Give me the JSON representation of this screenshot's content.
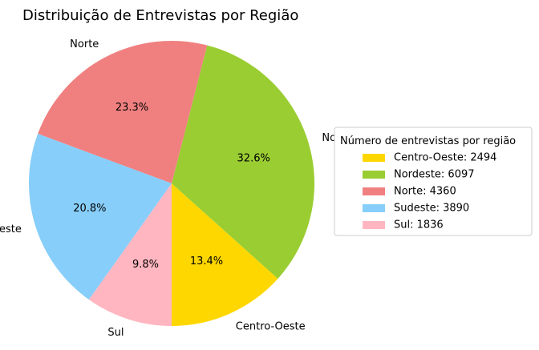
{
  "chart_data": {
    "type": "pie",
    "title": "Distribuição de Entrevistas por Região",
    "categories": [
      "Centro-Oeste",
      "Nordeste",
      "Norte",
      "Sudeste",
      "Sul"
    ],
    "values": [
      2494,
      6097,
      4360,
      3890,
      1836
    ],
    "percent_labels": [
      "13.4%",
      "32.6%",
      "23.3%",
      "20.8%",
      "9.8%"
    ],
    "colors": [
      "#ffd700",
      "#9acd32",
      "#f08080",
      "#87cefa",
      "#ffb6c1"
    ],
    "start_angle_deg": -90,
    "direction": "counterclockwise",
    "legend": {
      "title": "Número de entrevistas por região",
      "placement": "right",
      "entries": [
        "Centro-Oeste: 2494",
        "Nordeste: 6097",
        "Norte: 4360",
        "Sudeste: 3890",
        "Sul: 1836"
      ]
    }
  }
}
